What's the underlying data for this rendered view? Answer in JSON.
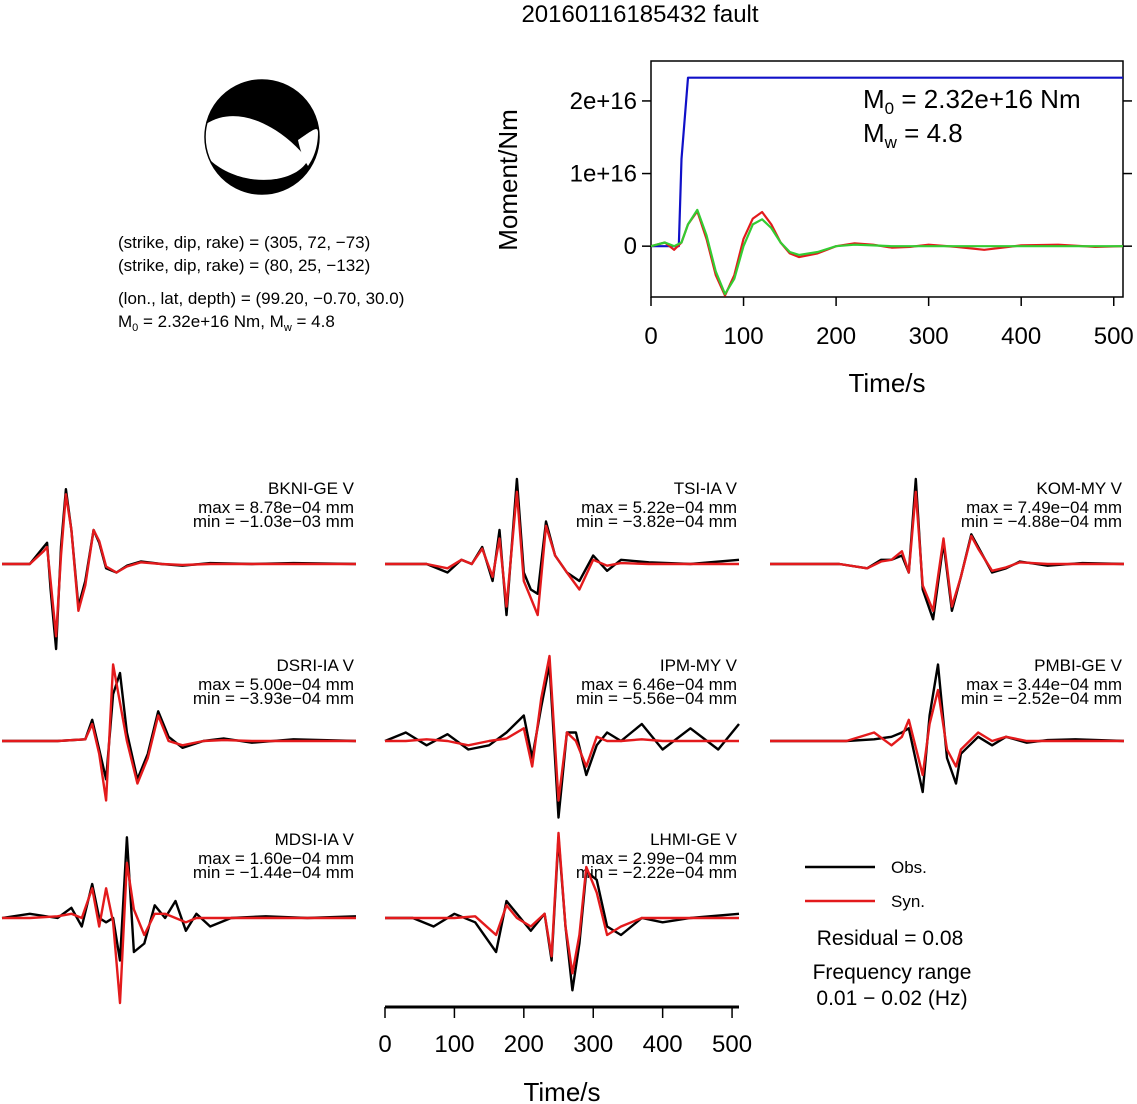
{
  "title": "20160116185432 fault",
  "info": {
    "line1": "(strike, dip, rake) = (305, 72, −73)",
    "line2": "(strike, dip, rake) = (80, 25, −132)",
    "line3": "(lon., lat, depth) = (99.20, −0.70, 30.0)",
    "line4_prefix": "M",
    "line4_sub": "0",
    "line4_mid": " = 2.32e+16 Nm, M",
    "line4_sub2": "w",
    "line4_suffix": " = 4.8"
  },
  "moment_annotation": {
    "m0_label": "M",
    "m0_sub": "0",
    "m0_value": " = 2.32e+16 Nm",
    "mw_label": "M",
    "mw_sub": "w",
    "mw_value": " = 4.8"
  },
  "legend": {
    "obs_label": "Obs.",
    "syn_label": "Syn.",
    "residual": "Residual = 0.08",
    "freq_title": "Frequency range",
    "freq_value": "0.01 − 0.02 (Hz)"
  },
  "colors": {
    "observed": "#000000",
    "synthetic": "#e31a1c",
    "moment": "#1010c8",
    "stf": "#33cc33"
  },
  "chart_data": [
    {
      "type": "line",
      "xlabel": "Time/s",
      "ylabel": "Moment/Nm",
      "xlim": [
        0,
        510
      ],
      "ylim": [
        -7000000000000000.0,
        2.55e+16
      ],
      "xticks": [
        0,
        100,
        200,
        300,
        400,
        500
      ],
      "yticks": [
        0,
        1e+16,
        2e+16
      ],
      "ytick_labels": [
        "0",
        "1e+16",
        "2e+16"
      ],
      "series": [
        {
          "color": "#1010c8",
          "x": [
            0,
            30,
            33,
            40,
            510
          ],
          "y": [
            0,
            0,
            1.2e+16,
            2.32e+16,
            2.32e+16
          ]
        },
        {
          "color": "#e31a1c",
          "x": [
            0,
            15,
            25,
            33,
            40,
            50,
            60,
            70,
            80,
            90,
            100,
            110,
            120,
            130,
            140,
            150,
            160,
            180,
            200,
            220,
            240,
            260,
            280,
            300,
            330,
            360,
            400,
            440,
            480,
            510
          ],
          "y": [
            0,
            500000000000000.0,
            -500000000000000.0,
            500000000000000.0,
            3000000000000000.0,
            4800000000000000.0,
            1000000000000000.0,
            -4000000000000000.0,
            -6800000000000000.0,
            -4000000000000000.0,
            1000000000000000.0,
            3800000000000000.0,
            4700000000000000.0,
            3000000000000000.0,
            500000000000000.0,
            -1000000000000000.0,
            -1500000000000000.0,
            -1000000000000000.0,
            0.0,
            400000000000000.0,
            200000000000000.0,
            -200000000000000.0,
            -100000000000000.0,
            200000000000000.0,
            -100000000000000.0,
            -500000000000000.0,
            100000000000000.0,
            200000000000000.0,
            -100000000000000.0,
            0
          ]
        },
        {
          "color": "#33cc33",
          "x": [
            0,
            15,
            25,
            33,
            40,
            50,
            60,
            70,
            80,
            90,
            100,
            110,
            120,
            130,
            140,
            150,
            160,
            180,
            200,
            220,
            240,
            260,
            280,
            300,
            330,
            360,
            400,
            440,
            480,
            510
          ],
          "y": [
            0,
            500000000000000.0,
            0.0,
            500000000000000.0,
            3000000000000000.0,
            5000000000000000.0,
            1500000000000000.0,
            -3500000000000000.0,
            -6600000000000000.0,
            -4500000000000000.0,
            0.0,
            3000000000000000.0,
            3700000000000000.0,
            2500000000000000.0,
            500000000000000.0,
            -800000000000000.0,
            -1200000000000000.0,
            -800000000000000.0,
            0.0,
            200000000000000.0,
            100000000000000.0,
            0.0,
            0.0,
            0.0,
            0.0,
            0.0,
            0.0,
            0.0,
            0.0,
            0
          ]
        }
      ]
    },
    {
      "type": "line",
      "xlabel": "Time/s",
      "xlim": [
        0,
        510
      ],
      "xticks": [
        0,
        100,
        200,
        300,
        400,
        500
      ],
      "stations": [
        {
          "name": "BKNI-GE V",
          "max": "max = 8.78e−04 mm",
          "min": "min = −1.03e−03 mm",
          "x": [
            0,
            40,
            60,
            65,
            70,
            78,
            85,
            92,
            100,
            110,
            120,
            132,
            140,
            150,
            165,
            180,
            200,
            230,
            260,
            300,
            360,
            420,
            510
          ],
          "obs": [
            0,
            0,
            0.2,
            0.25,
            -0.3,
            -1.0,
            0.2,
            0.88,
            0.4,
            -0.5,
            -0.2,
            0.4,
            0.25,
            -0.05,
            -0.1,
            -0.02,
            0.03,
            0.0,
            -0.02,
            0.01,
            0.0,
            0.01,
            0
          ],
          "syn": [
            0,
            0,
            0.15,
            0.2,
            -0.2,
            -0.85,
            0.1,
            0.82,
            0.4,
            -0.55,
            -0.25,
            0.4,
            0.27,
            -0.03,
            -0.1,
            -0.03,
            0.02,
            0.0,
            -0.01,
            0.0,
            0.0,
            0.0,
            0
          ]
        },
        {
          "name": "TSI-IA V",
          "max": "max = 5.22e−04 mm",
          "min": "min = −3.82e−04 mm",
          "x": [
            0,
            60,
            90,
            110,
            125,
            140,
            155,
            165,
            175,
            190,
            200,
            210,
            220,
            232,
            245,
            262,
            280,
            300,
            320,
            340,
            380,
            440,
            510
          ],
          "obs": [
            0,
            0.0,
            -0.1,
            0.05,
            0.0,
            0.2,
            -0.2,
            0.4,
            -0.6,
            1.0,
            -0.1,
            -0.3,
            -0.35,
            0.5,
            0.1,
            -0.1,
            -0.2,
            0.1,
            -0.08,
            0.05,
            0.02,
            0.0,
            0.05
          ],
          "syn": [
            0,
            0.0,
            -0.05,
            0.05,
            0.0,
            0.18,
            -0.15,
            0.3,
            -0.5,
            0.85,
            -0.2,
            -0.4,
            -0.6,
            0.45,
            0.1,
            -0.1,
            -0.3,
            0.05,
            -0.02,
            0.01,
            0.0,
            0.0,
            0
          ]
        },
        {
          "name": "KOM-MY V",
          "max": "max = 7.49e−04 mm",
          "min": "min = −4.88e−04 mm",
          "x": [
            0,
            100,
            140,
            160,
            175,
            190,
            200,
            210,
            220,
            235,
            250,
            262,
            275,
            290,
            300,
            320,
            340,
            360,
            400,
            450,
            510
          ],
          "obs": [
            0,
            0.0,
            -0.05,
            0.05,
            0.05,
            0.1,
            -0.1,
            1.0,
            -0.3,
            -0.65,
            0.25,
            -0.55,
            -0.15,
            0.35,
            0.2,
            -0.1,
            -0.05,
            0.03,
            -0.02,
            0.01,
            0.0
          ],
          "syn": [
            0,
            0.0,
            -0.05,
            0.03,
            0.05,
            0.15,
            -0.1,
            0.85,
            -0.25,
            -0.55,
            0.3,
            -0.5,
            -0.15,
            0.33,
            0.18,
            -0.08,
            -0.04,
            0.02,
            0.0,
            0.0,
            0.0
          ]
        },
        {
          "name": "DSRI-IA V",
          "max": "max = 5.00e−04 mm",
          "min": "min = −3.93e−04 mm",
          "x": [
            0,
            80,
            120,
            130,
            140,
            150,
            160,
            170,
            180,
            195,
            210,
            225,
            240,
            260,
            290,
            320,
            360,
            420,
            510
          ],
          "obs": [
            0,
            0.0,
            0.02,
            0.25,
            -0.1,
            -0.45,
            0.55,
            0.8,
            0.1,
            -0.45,
            -0.15,
            0.35,
            0.05,
            -0.08,
            0.0,
            0.03,
            -0.02,
            0.02,
            0
          ],
          "syn": [
            0,
            0.0,
            0.02,
            0.2,
            -0.15,
            -0.7,
            0.9,
            0.45,
            0.0,
            -0.5,
            -0.2,
            0.3,
            0.0,
            -0.05,
            0.0,
            0.01,
            0.0,
            0.0,
            0
          ]
        },
        {
          "name": "IPM-MY V",
          "max": "max = 6.46e−04 mm",
          "min": "min = −5.56e−04 mm",
          "x": [
            0,
            30,
            60,
            90,
            120,
            150,
            175,
            200,
            212,
            225,
            237,
            250,
            262,
            275,
            290,
            305,
            320,
            340,
            370,
            400,
            440,
            480,
            510
          ],
          "obs": [
            0,
            0.1,
            -0.05,
            0.08,
            -0.1,
            -0.05,
            0.1,
            0.3,
            -0.2,
            0.4,
            0.9,
            -0.9,
            0.1,
            0.1,
            -0.4,
            -0.05,
            0.1,
            0.0,
            0.2,
            -0.1,
            0.15,
            -0.1,
            0.2
          ],
          "syn": [
            0,
            0.0,
            0.02,
            0.0,
            -0.05,
            0.0,
            0.03,
            0.15,
            -0.3,
            0.5,
            1.0,
            -0.7,
            0.1,
            0.0,
            -0.3,
            0.05,
            0.0,
            0.0,
            0.02,
            0.0,
            0.0,
            0.0,
            0
          ]
        },
        {
          "name": "PMBI-GE V",
          "max": "max = 3.44e−04 mm",
          "min": "min = −2.52e−04 mm",
          "x": [
            0,
            60,
            110,
            150,
            175,
            190,
            200,
            220,
            230,
            242,
            255,
            268,
            275,
            300,
            320,
            340,
            370,
            400,
            440,
            510
          ],
          "obs": [
            0,
            0.0,
            0.0,
            0.02,
            0.05,
            0.1,
            0.15,
            -0.6,
            0.3,
            0.9,
            -0.2,
            -0.5,
            -0.15,
            0.05,
            -0.05,
            0.05,
            -0.02,
            0.01,
            0.02,
            0
          ],
          "syn": [
            0,
            0.0,
            0.0,
            0.1,
            -0.05,
            0.05,
            0.25,
            -0.4,
            0.2,
            0.6,
            -0.1,
            -0.3,
            -0.1,
            0.1,
            0.0,
            0.05,
            0.0,
            0.0,
            0.0,
            0
          ]
        },
        {
          "name": "MDSI-IA V",
          "max": "max = 1.60e−04 mm",
          "min": "min = −1.44e−04 mm",
          "x": [
            0,
            40,
            80,
            100,
            115,
            130,
            140,
            150,
            160,
            170,
            180,
            190,
            205,
            220,
            235,
            250,
            265,
            280,
            300,
            330,
            380,
            440,
            510
          ],
          "obs": [
            0,
            0.05,
            0.0,
            0.12,
            -0.1,
            0.4,
            0.0,
            -0.05,
            0.0,
            -0.5,
            0.95,
            -0.4,
            -0.3,
            0.15,
            0.0,
            0.2,
            -0.15,
            0.05,
            -0.1,
            0.0,
            0.02,
            0.0,
            0.02
          ],
          "syn": [
            0,
            0.0,
            0.02,
            0.05,
            0.0,
            0.35,
            -0.1,
            0.35,
            -0.05,
            -1.0,
            0.65,
            0.1,
            -0.2,
            0.05,
            0.05,
            0.0,
            -0.05,
            0.0,
            0.0,
            0.0,
            0.0,
            0.0,
            0.0
          ]
        },
        {
          "name": "LHMI-GE V",
          "max": "max = 2.99e−04 mm",
          "min": "min = −2.22e−04 mm",
          "x": [
            0,
            40,
            70,
            100,
            130,
            160,
            175,
            190,
            210,
            230,
            240,
            250,
            260,
            270,
            280,
            290,
            305,
            320,
            340,
            370,
            400,
            440,
            510
          ],
          "obs": [
            0,
            0.0,
            -0.1,
            0.05,
            -0.05,
            -0.4,
            0.2,
            0.05,
            -0.15,
            0.05,
            -0.5,
            0.95,
            -0.1,
            -0.85,
            -0.3,
            0.55,
            0.45,
            -0.1,
            -0.2,
            0.0,
            -0.05,
            0.0,
            0.05
          ],
          "syn": [
            0,
            0.0,
            0.0,
            0.0,
            0.02,
            -0.2,
            0.15,
            0.0,
            -0.1,
            0.05,
            -0.45,
            1.0,
            -0.1,
            -0.65,
            -0.2,
            0.6,
            0.3,
            -0.2,
            -0.1,
            0.0,
            0.0,
            0.0,
            0
          ]
        }
      ]
    }
  ]
}
